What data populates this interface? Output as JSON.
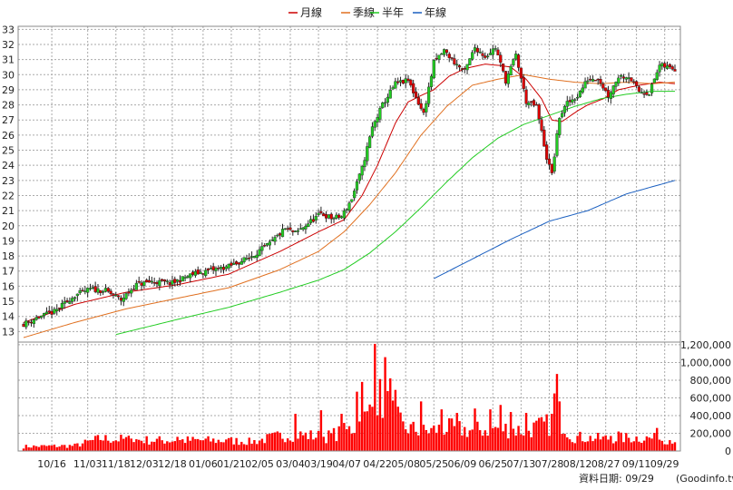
{
  "chart_data": {
    "type": "candlestick",
    "legend": [
      {
        "name": "月線",
        "color": "#cc0000"
      },
      {
        "name": "季線",
        "color": "#e07020"
      },
      {
        "name": "半年",
        "color": "#22cc22"
      },
      {
        "name": "年線",
        "color": "#1a5fc0"
      }
    ],
    "price_axis": {
      "ylim": [
        12.3,
        33.2
      ],
      "ticks": [
        "13",
        "14",
        "15",
        "16",
        "17",
        "18",
        "19",
        "20",
        "21",
        "22",
        "23",
        "24",
        "25",
        "26",
        "27",
        "28",
        "29",
        "30",
        "31",
        "32",
        "33"
      ]
    },
    "volume_axis": {
      "ylim": [
        0,
        1230000
      ],
      "ticks": [
        "0",
        "200,000",
        "400,000",
        "600,000",
        "800,000",
        "1,000,000",
        "1,200,000"
      ]
    },
    "x_ticks": [
      {
        "label": "10/16",
        "i": 11
      },
      {
        "label": "11/03",
        "i": 25
      },
      {
        "label": "11/18",
        "i": 36
      },
      {
        "label": "12/03",
        "i": 47
      },
      {
        "label": "12/18",
        "i": 58
      },
      {
        "label": "01/06",
        "i": 70
      },
      {
        "label": "01/21",
        "i": 81
      },
      {
        "label": "02/05",
        "i": 92
      },
      {
        "label": "03/04",
        "i": 104
      },
      {
        "label": "03/19",
        "i": 115
      },
      {
        "label": "04/07",
        "i": 126
      },
      {
        "label": "04/22",
        "i": 138
      },
      {
        "label": "05/08",
        "i": 149
      },
      {
        "label": "05/25",
        "i": 160
      },
      {
        "label": "06/09",
        "i": 171
      },
      {
        "label": "06/25",
        "i": 183
      },
      {
        "label": "07/13",
        "i": 194
      },
      {
        "label": "07/28",
        "i": 205
      },
      {
        "label": "08/12",
        "i": 216
      },
      {
        "label": "08/27",
        "i": 227
      },
      {
        "label": "09/11",
        "i": 239
      },
      {
        "label": "09/29",
        "i": 250
      }
    ],
    "n_days": 255,
    "close_anchors": [
      [
        0,
        13.5
      ],
      [
        5,
        13.9
      ],
      [
        12,
        14.3
      ],
      [
        20,
        15.4
      ],
      [
        26,
        15.8
      ],
      [
        32,
        15.7
      ],
      [
        38,
        15.1
      ],
      [
        44,
        16.1
      ],
      [
        50,
        16.3
      ],
      [
        58,
        16.2
      ],
      [
        66,
        16.8
      ],
      [
        74,
        17.1
      ],
      [
        80,
        17.3
      ],
      [
        88,
        17.9
      ],
      [
        96,
        18.8
      ],
      [
        102,
        19.8
      ],
      [
        106,
        19.5
      ],
      [
        112,
        20.3
      ],
      [
        116,
        20.8
      ],
      [
        120,
        20.5
      ],
      [
        124,
        20.6
      ],
      [
        128,
        21.8
      ],
      [
        132,
        23.8
      ],
      [
        136,
        26.5
      ],
      [
        140,
        28.0
      ],
      [
        145,
        29.4
      ],
      [
        150,
        29.6
      ],
      [
        156,
        27.4
      ],
      [
        160,
        30.8
      ],
      [
        164,
        31.6
      ],
      [
        168,
        30.8
      ],
      [
        172,
        30.2
      ],
      [
        176,
        31.8
      ],
      [
        180,
        31.2
      ],
      [
        184,
        31.8
      ],
      [
        188,
        29.6
      ],
      [
        192,
        31.3
      ],
      [
        196,
        28.2
      ],
      [
        200,
        27.9
      ],
      [
        204,
        24.5
      ],
      [
        206,
        23.4
      ],
      [
        209,
        27.2
      ],
      [
        212,
        28.1
      ],
      [
        216,
        28.6
      ],
      [
        220,
        29.7
      ],
      [
        224,
        29.8
      ],
      [
        228,
        28.6
      ],
      [
        232,
        29.9
      ],
      [
        236,
        29.9
      ],
      [
        240,
        28.9
      ],
      [
        244,
        28.8
      ],
      [
        248,
        30.6
      ],
      [
        254,
        30.4
      ]
    ],
    "volume_anchors": [
      [
        0,
        50000
      ],
      [
        20,
        60000
      ],
      [
        30,
        140000
      ],
      [
        50,
        120000
      ],
      [
        70,
        120000
      ],
      [
        90,
        110000
      ],
      [
        104,
        190000
      ],
      [
        118,
        160000
      ],
      [
        128,
        250000
      ],
      [
        134,
        380000
      ],
      [
        138,
        620000
      ],
      [
        142,
        500000
      ],
      [
        148,
        270000
      ],
      [
        156,
        220000
      ],
      [
        165,
        260000
      ],
      [
        175,
        230000
      ],
      [
        185,
        260000
      ],
      [
        195,
        230000
      ],
      [
        205,
        300000
      ],
      [
        208,
        420000
      ],
      [
        214,
        160000
      ],
      [
        225,
        140000
      ],
      [
        240,
        150000
      ],
      [
        254,
        130000
      ]
    ],
    "volume_spikes": [
      [
        137,
        1210000
      ],
      [
        141,
        1060000
      ],
      [
        130,
        670000
      ],
      [
        132,
        780000
      ],
      [
        143,
        820000
      ],
      [
        145,
        690000
      ],
      [
        155,
        560000
      ],
      [
        163,
        470000
      ],
      [
        176,
        480000
      ],
      [
        182,
        470000
      ],
      [
        186,
        520000
      ],
      [
        196,
        430000
      ],
      [
        208,
        870000
      ],
      [
        207,
        650000
      ],
      [
        209,
        560000
      ],
      [
        106,
        420000
      ],
      [
        116,
        460000
      ],
      [
        124,
        420000
      ],
      [
        169,
        430000
      ],
      [
        190,
        440000
      ],
      [
        36,
        120000
      ],
      [
        42,
        140000
      ],
      [
        60,
        160000
      ],
      [
        79,
        130000
      ],
      [
        88,
        150000
      ],
      [
        229,
        170000
      ],
      [
        247,
        260000
      ],
      [
        232,
        220000
      ]
    ],
    "ma_lines": {
      "monthly": [
        [
          0,
          13.6
        ],
        [
          20,
          14.8
        ],
        [
          40,
          15.6
        ],
        [
          60,
          16.1
        ],
        [
          80,
          16.8
        ],
        [
          100,
          18.3
        ],
        [
          115,
          19.6
        ],
        [
          125,
          20.4
        ],
        [
          132,
          22.0
        ],
        [
          138,
          24.0
        ],
        [
          145,
          26.8
        ],
        [
          150,
          28.2
        ],
        [
          156,
          28.7
        ],
        [
          160,
          29.0
        ],
        [
          166,
          29.9
        ],
        [
          172,
          30.4
        ],
        [
          180,
          30.7
        ],
        [
          186,
          30.6
        ],
        [
          190,
          30.5
        ],
        [
          196,
          29.7
        ],
        [
          202,
          28.4
        ],
        [
          206,
          27.0
        ],
        [
          210,
          26.9
        ],
        [
          216,
          27.6
        ],
        [
          220,
          28.0
        ],
        [
          226,
          28.4
        ],
        [
          232,
          29.0
        ],
        [
          240,
          29.3
        ],
        [
          248,
          29.5
        ],
        [
          254,
          29.4
        ]
      ],
      "quarterly": [
        [
          0,
          12.6
        ],
        [
          20,
          13.6
        ],
        [
          40,
          14.5
        ],
        [
          60,
          15.2
        ],
        [
          80,
          15.9
        ],
        [
          100,
          17.1
        ],
        [
          115,
          18.3
        ],
        [
          125,
          19.6
        ],
        [
          135,
          21.4
        ],
        [
          145,
          23.5
        ],
        [
          155,
          26.0
        ],
        [
          165,
          27.9
        ],
        [
          175,
          29.3
        ],
        [
          185,
          29.7
        ],
        [
          195,
          30.0
        ],
        [
          205,
          29.7
        ],
        [
          215,
          29.5
        ],
        [
          225,
          29.4
        ],
        [
          235,
          29.5
        ],
        [
          245,
          29.4
        ],
        [
          254,
          29.5
        ]
      ],
      "halfyear": [
        [
          36,
          12.8
        ],
        [
          60,
          13.8
        ],
        [
          80,
          14.6
        ],
        [
          100,
          15.6
        ],
        [
          115,
          16.4
        ],
        [
          125,
          17.1
        ],
        [
          135,
          18.2
        ],
        [
          145,
          19.6
        ],
        [
          155,
          21.2
        ],
        [
          165,
          22.9
        ],
        [
          175,
          24.5
        ],
        [
          185,
          25.8
        ],
        [
          195,
          26.7
        ],
        [
          205,
          27.3
        ],
        [
          215,
          27.9
        ],
        [
          225,
          28.4
        ],
        [
          235,
          28.7
        ],
        [
          245,
          28.9
        ],
        [
          254,
          28.9
        ]
      ],
      "yearly": [
        [
          160,
          16.5
        ],
        [
          175,
          17.8
        ],
        [
          190,
          19.1
        ],
        [
          205,
          20.3
        ],
        [
          220,
          21.0
        ],
        [
          235,
          22.1
        ],
        [
          254,
          23.0
        ]
      ]
    }
  },
  "footer": {
    "date_label": "資料日期: 09/29",
    "source": "(Goodinfo.tw)"
  }
}
